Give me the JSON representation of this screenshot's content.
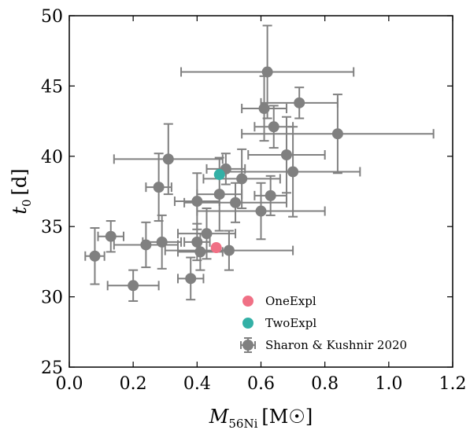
{
  "chart_data": {
    "type": "scatter",
    "title": "",
    "xlabel": {
      "main": "M",
      "sub": "56Ni",
      "unit": "[M☉]"
    },
    "ylabel": {
      "main": "t",
      "sub": "0",
      "unit": "[d]"
    },
    "xlim": [
      0.0,
      1.2
    ],
    "ylim": [
      25,
      50
    ],
    "x_ticks": [
      "0.0",
      "0.2",
      "0.4",
      "0.6",
      "0.8",
      "1.0",
      "1.2"
    ],
    "y_ticks": [
      "25",
      "30",
      "35",
      "40",
      "45",
      "50"
    ],
    "grid": false,
    "legend_position": "lower-right",
    "series": [
      {
        "name": "OneExpl",
        "color": "#f07085",
        "marker": "circle",
        "points": [
          {
            "x": 0.46,
            "y": 33.5
          }
        ]
      },
      {
        "name": "TwoExpl",
        "color": "#33b0a6",
        "marker": "circle",
        "points": [
          {
            "x": 0.47,
            "y": 38.7
          }
        ]
      },
      {
        "name": "Sharon & Kushnir 2020",
        "color": "#808080",
        "marker": "circle-errorbar",
        "points": [
          {
            "x": 0.08,
            "y": 32.9,
            "xerr": 0.03,
            "yerr": 2.0
          },
          {
            "x": 0.13,
            "y": 34.3,
            "xerr": 0.04,
            "yerr": 1.1
          },
          {
            "x": 0.2,
            "y": 30.8,
            "xerr": 0.08,
            "yerr": 1.1
          },
          {
            "x": 0.24,
            "y": 33.7,
            "xerr": 0.1,
            "yerr": 1.6
          },
          {
            "x": 0.28,
            "y": 37.8,
            "xerr": 0.04,
            "yerr": 2.4
          },
          {
            "x": 0.29,
            "y": 33.9,
            "xerr": 0.06,
            "yerr": 1.9
          },
          {
            "x": 0.31,
            "y": 39.8,
            "xerr": 0.17,
            "yerr": 2.5
          },
          {
            "x": 0.38,
            "y": 31.3,
            "xerr": 0.04,
            "yerr": 1.5
          },
          {
            "x": 0.4,
            "y": 36.8,
            "xerr": 0.07,
            "yerr": 2.0
          },
          {
            "x": 0.4,
            "y": 33.9,
            "xerr": 0.04,
            "yerr": 1.3
          },
          {
            "x": 0.41,
            "y": 33.2,
            "xerr": 0.07,
            "yerr": 1.3
          },
          {
            "x": 0.43,
            "y": 34.5,
            "xerr": 0.09,
            "yerr": 1.8
          },
          {
            "x": 0.47,
            "y": 37.3,
            "xerr": 0.07,
            "yerr": 2.6
          },
          {
            "x": 0.49,
            "y": 39.1,
            "xerr": 0.06,
            "yerr": 1.1
          },
          {
            "x": 0.5,
            "y": 33.3,
            "xerr": 0.2,
            "yerr": 1.4
          },
          {
            "x": 0.52,
            "y": 36.7,
            "xerr": 0.16,
            "yerr": 1.4
          },
          {
            "x": 0.54,
            "y": 38.4,
            "xerr": 0.12,
            "yerr": 2.1
          },
          {
            "x": 0.6,
            "y": 36.1,
            "xerr": 0.2,
            "yerr": 2.0
          },
          {
            "x": 0.61,
            "y": 43.4,
            "xerr": 0.07,
            "yerr": 2.3
          },
          {
            "x": 0.62,
            "y": 46.0,
            "xerr": 0.27,
            "yerr": 3.3
          },
          {
            "x": 0.63,
            "y": 37.2,
            "xerr": 0.05,
            "yerr": 1.4
          },
          {
            "x": 0.64,
            "y": 42.1,
            "xerr": 0.06,
            "yerr": 1.5
          },
          {
            "x": 0.68,
            "y": 40.1,
            "xerr": 0.12,
            "yerr": 2.7
          },
          {
            "x": 0.7,
            "y": 38.9,
            "xerr": 0.21,
            "yerr": 3.2
          },
          {
            "x": 0.72,
            "y": 43.8,
            "xerr": 0.12,
            "yerr": 1.1
          },
          {
            "x": 0.84,
            "y": 41.6,
            "xerr": 0.3,
            "yerr": 2.8
          }
        ]
      }
    ]
  }
}
